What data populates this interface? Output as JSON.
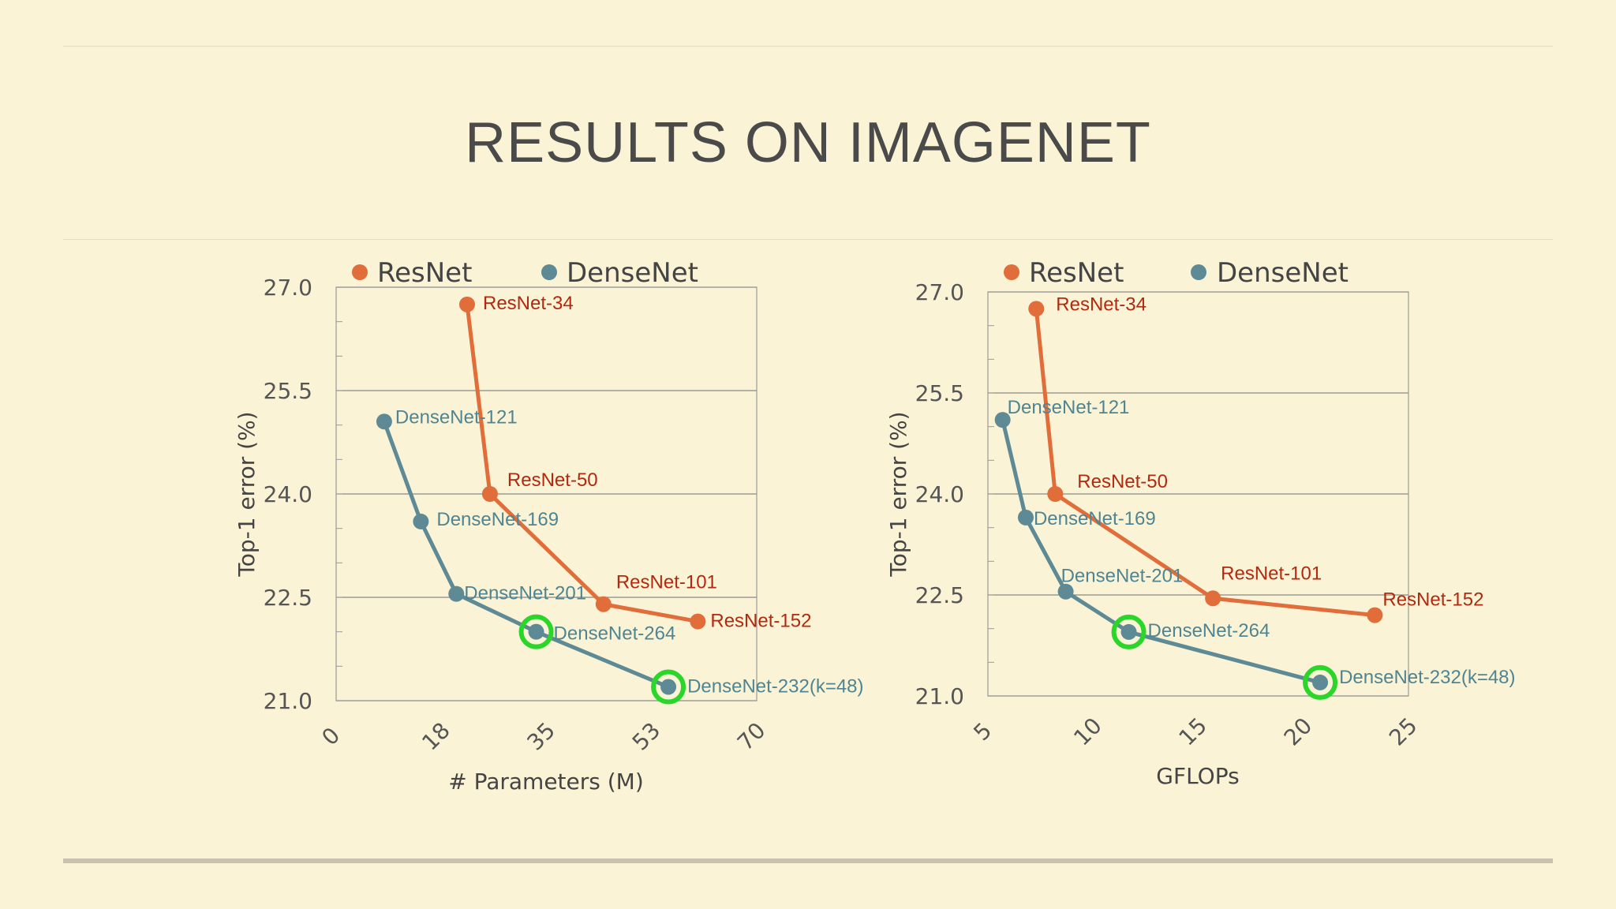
{
  "slide": {
    "title": "RESULTS ON IMAGENET"
  },
  "colors": {
    "resnet": "#e06d3a",
    "resnet_label": "#b12a10",
    "densenet": "#5e8a96",
    "densenet_label": "#4f8592",
    "highlight": "#2bd62b",
    "grid": "#888888",
    "axis": "#999999"
  },
  "chart_data": [
    {
      "type": "line",
      "xlabel": "# Parameters (M)",
      "ylabel": "Top-1 error (%)",
      "xlim": [
        0,
        70
      ],
      "ylim": [
        21.0,
        27.0
      ],
      "xticks": [
        "0",
        "18",
        "35",
        "53",
        "70"
      ],
      "yticks": [
        "21.0",
        "22.5",
        "24.0",
        "25.5",
        "27.0"
      ],
      "legend": [
        "ResNet",
        "DenseNet"
      ],
      "legend_position": "top",
      "grid": "horizontal",
      "series": [
        {
          "name": "ResNet",
          "points": [
            {
              "x": 21.8,
              "y": 26.75,
              "label": "ResNet-34"
            },
            {
              "x": 25.6,
              "y": 24.0,
              "label": "ResNet-50"
            },
            {
              "x": 44.5,
              "y": 22.4,
              "label": "ResNet-101"
            },
            {
              "x": 60.2,
              "y": 22.15,
              "label": "ResNet-152"
            }
          ]
        },
        {
          "name": "DenseNet",
          "points": [
            {
              "x": 8.0,
              "y": 25.05,
              "label": "DenseNet-121"
            },
            {
              "x": 14.1,
              "y": 23.6,
              "label": "DenseNet-169"
            },
            {
              "x": 20.0,
              "y": 22.55,
              "label": "DenseNet-201"
            },
            {
              "x": 33.3,
              "y": 22.0,
              "label": "DenseNet-264",
              "highlighted": true
            },
            {
              "x": 55.3,
              "y": 21.2,
              "label": "DenseNet-232(k=48)",
              "highlighted": true
            }
          ]
        }
      ]
    },
    {
      "type": "line",
      "xlabel": "GFLOPs",
      "ylabel": "Top-1 error (%)",
      "xlim": [
        5,
        25
      ],
      "ylim": [
        21.0,
        27.0
      ],
      "xticks": [
        "5",
        "10",
        "15",
        "20",
        "25"
      ],
      "yticks": [
        "21.0",
        "22.5",
        "24.0",
        "25.5",
        "27.0"
      ],
      "legend": [
        "ResNet",
        "DenseNet"
      ],
      "legend_position": "top",
      "grid": "horizontal",
      "series": [
        {
          "name": "ResNet",
          "points": [
            {
              "x": 7.3,
              "y": 26.75,
              "label": "ResNet-34"
            },
            {
              "x": 8.2,
              "y": 24.0,
              "label": "ResNet-50"
            },
            {
              "x": 15.7,
              "y": 22.45,
              "label": "ResNet-101"
            },
            {
              "x": 23.4,
              "y": 22.2,
              "label": "ResNet-152"
            }
          ]
        },
        {
          "name": "DenseNet",
          "points": [
            {
              "x": 5.7,
              "y": 25.1,
              "label": "DenseNet-121"
            },
            {
              "x": 6.8,
              "y": 23.65,
              "label": "DenseNet-169"
            },
            {
              "x": 8.7,
              "y": 22.55,
              "label": "DenseNet-201"
            },
            {
              "x": 11.7,
              "y": 21.95,
              "label": "DenseNet-264",
              "highlighted": true
            },
            {
              "x": 20.8,
              "y": 21.2,
              "label": "DenseNet-232(k=48)",
              "highlighted": true
            }
          ]
        }
      ]
    }
  ]
}
